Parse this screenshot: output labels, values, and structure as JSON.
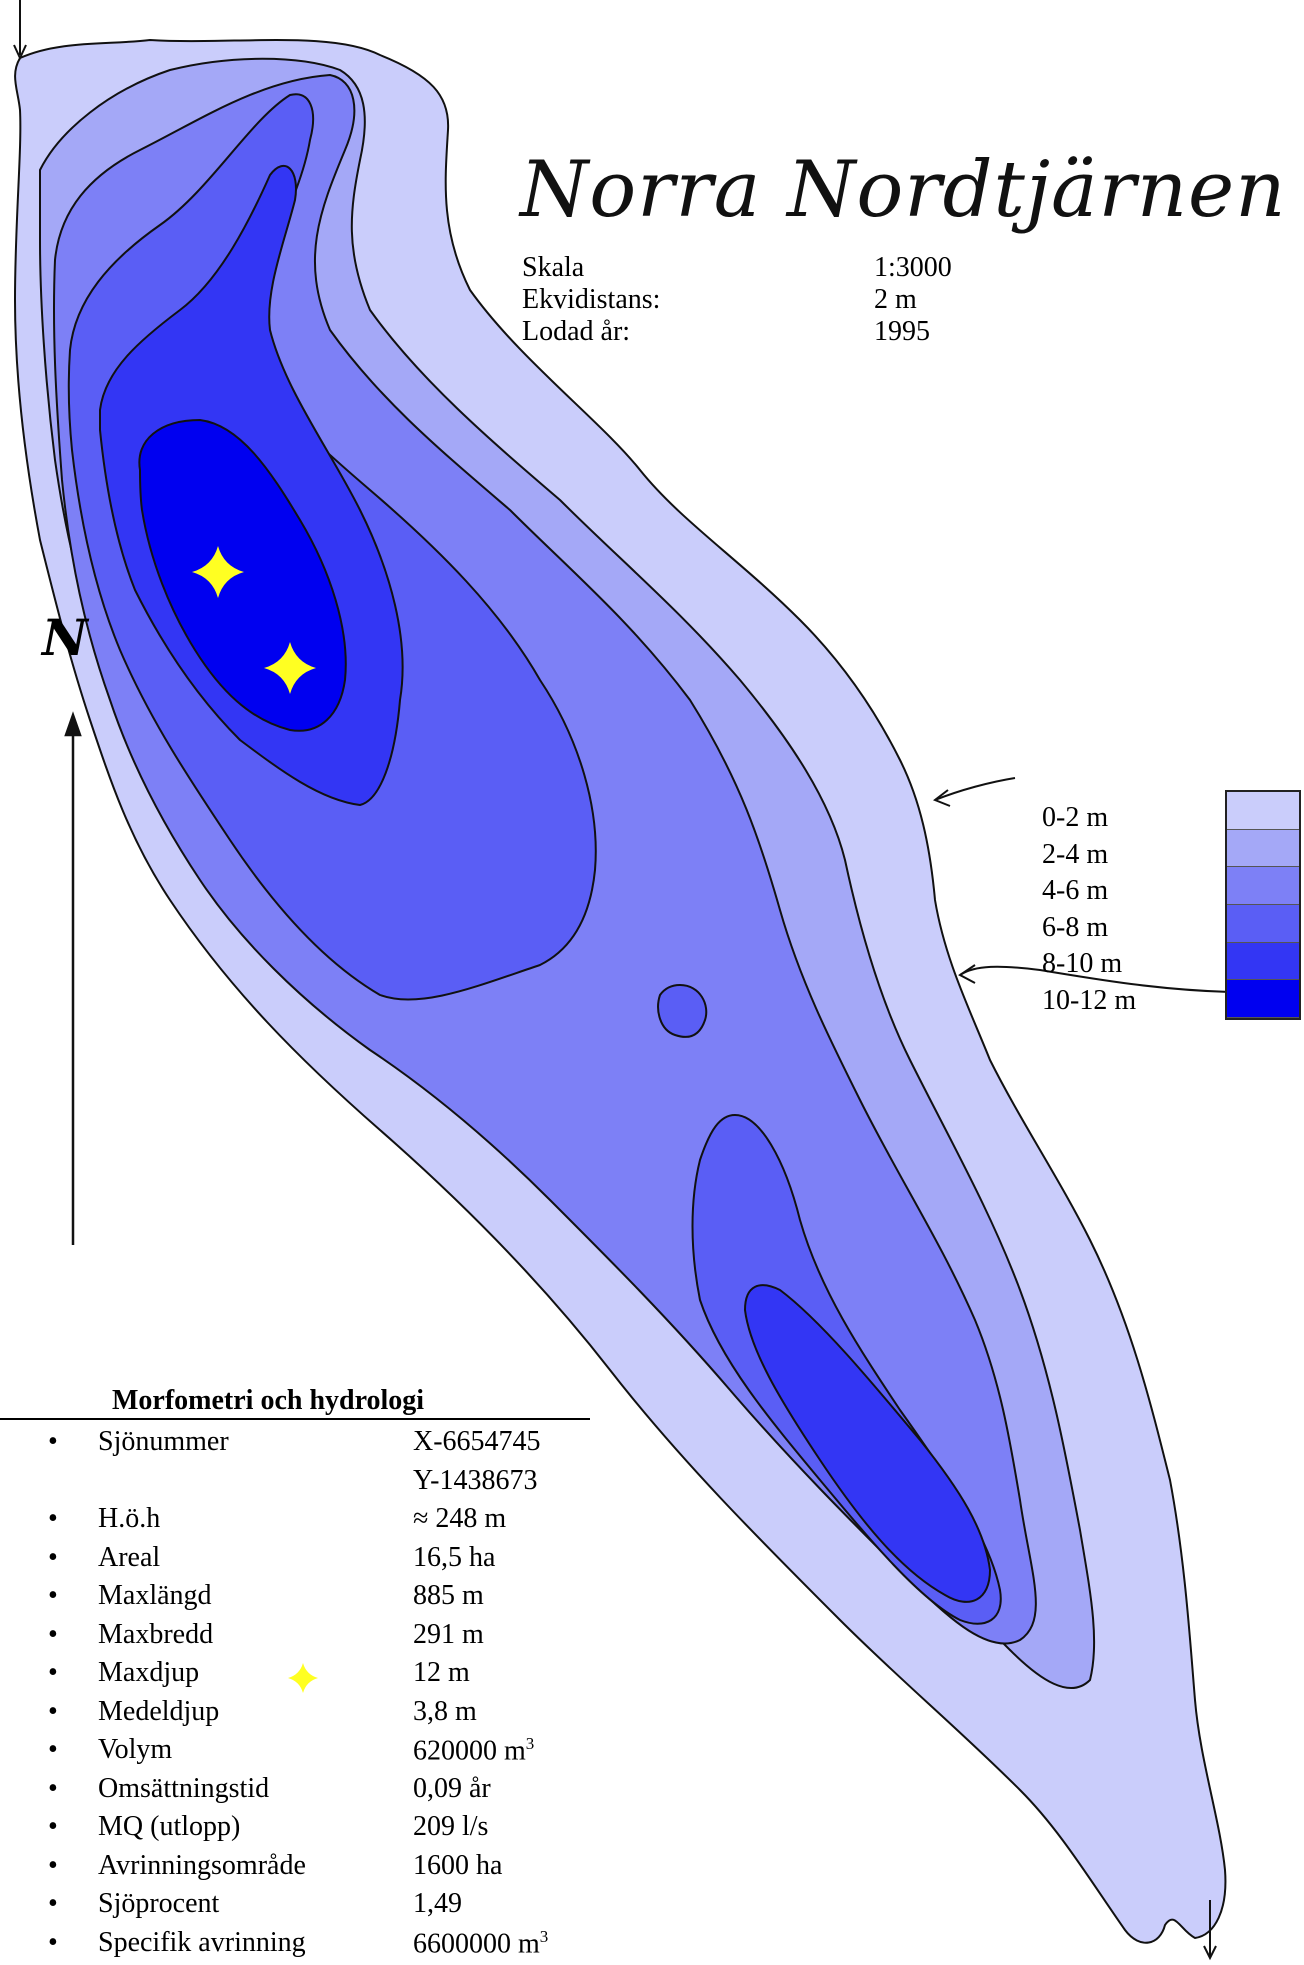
{
  "title": "Norra Nordtjärnen",
  "info": [
    {
      "label": "Skala",
      "value": "1:3000"
    },
    {
      "label": "Ekvidistans:",
      "value": "2 m"
    },
    {
      "label": "Lodad år:",
      "value": "1995"
    }
  ],
  "north_label": "N",
  "legend": {
    "items": [
      {
        "label": "0-2 m",
        "color": "#cacdfb"
      },
      {
        "label": "2-4 m",
        "color": "#a4a8f7"
      },
      {
        "label": "4-6 m",
        "color": "#7d80f6"
      },
      {
        "label": "6-8 m",
        "color": "#5a5ef5"
      },
      {
        "label": "8-10 m",
        "color": "#3336f4"
      },
      {
        "label": "10-12 m",
        "color": "#0000f0"
      }
    ]
  },
  "marker_color": "#ffff22",
  "morphometry": {
    "title": "Morfometri och hydrologi",
    "rows": [
      {
        "label": "Sjönummer",
        "value": "X-6654745",
        "value2": "Y-1438673"
      },
      {
        "label": "H.ö.h",
        "value": "≈ 248 m"
      },
      {
        "label": "Areal",
        "value": "16,5 ha"
      },
      {
        "label": "Maxlängd",
        "value": "885 m"
      },
      {
        "label": "Maxbredd",
        "value": "291 m"
      },
      {
        "label": "Maxdjup",
        "value": "12 m",
        "has_marker": true
      },
      {
        "label": "Medeldjup",
        "value": "3,8 m"
      },
      {
        "label": "Volym",
        "value": "620000 m",
        "sup": "3"
      },
      {
        "label": "Omsättningstid",
        "value": "0,09 år"
      },
      {
        "label": "MQ (utlopp)",
        "value": "209 l/s"
      },
      {
        "label": "Avrinningsområde",
        "value": "1600 ha"
      },
      {
        "label": "Sjöprocent",
        "value": "1,49"
      },
      {
        "label": "Specifik avrinning",
        "value": "6600000 m",
        "sup": "3"
      }
    ]
  }
}
